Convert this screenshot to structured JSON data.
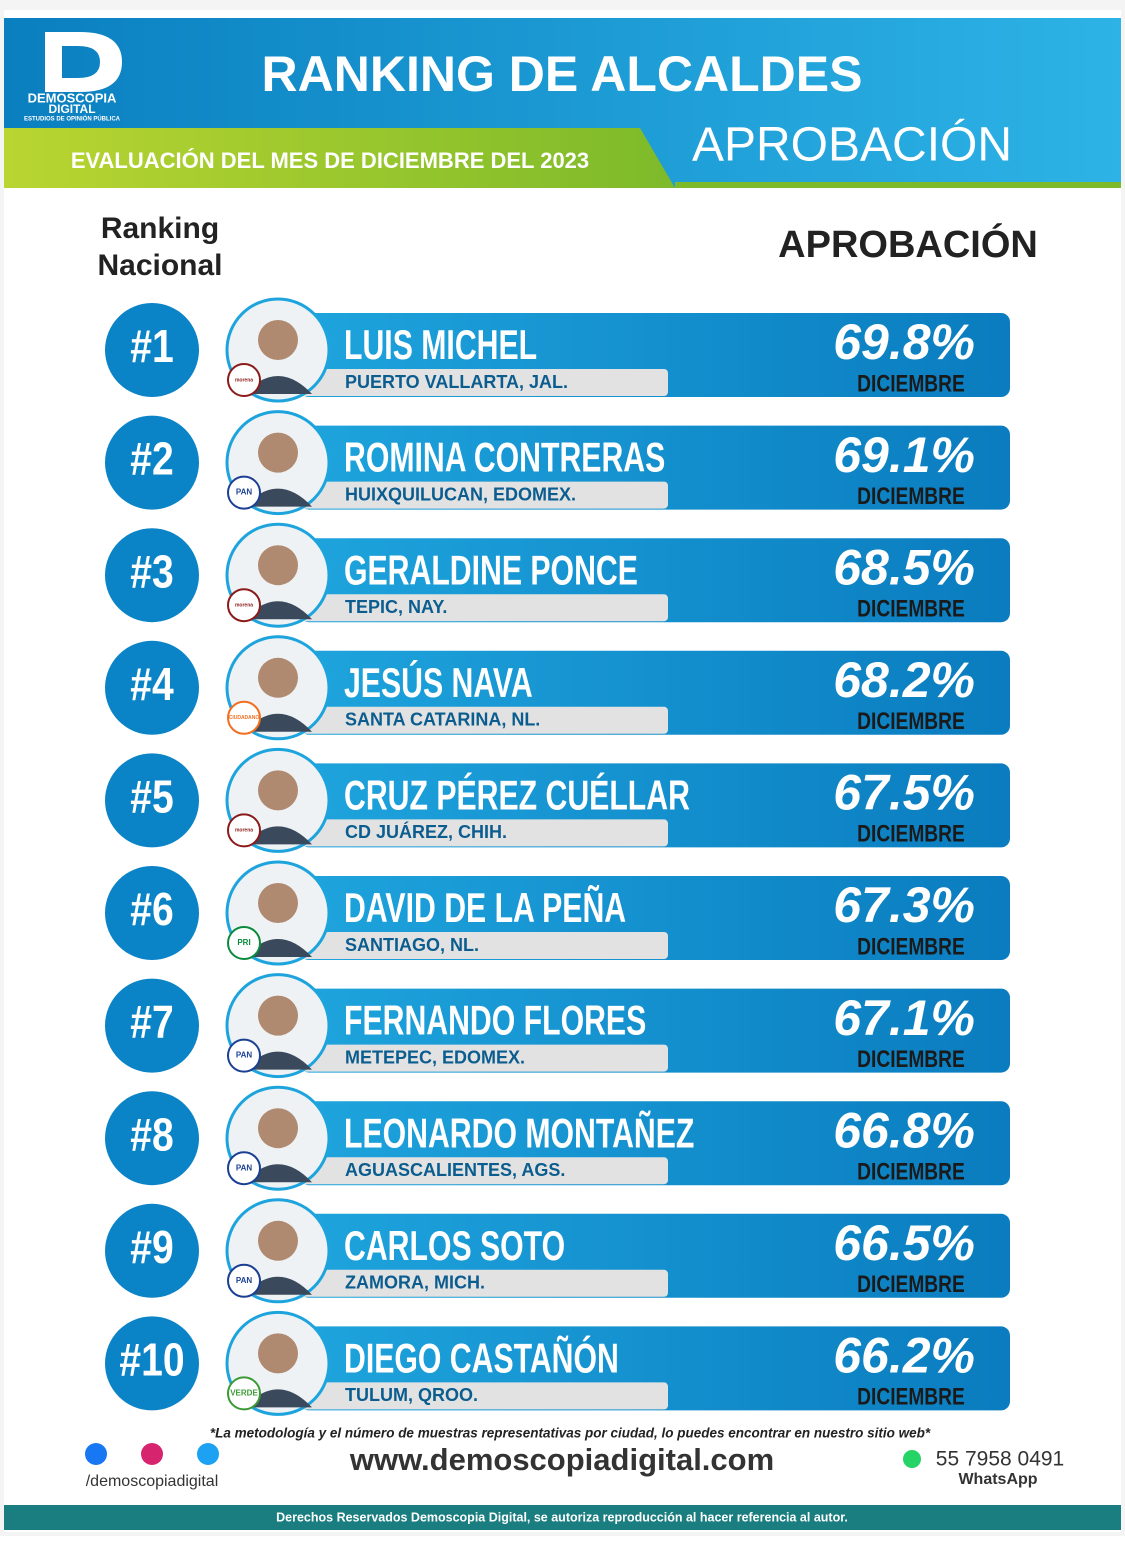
{
  "header": {
    "brand": "DEMOSCOPIA",
    "brand_2": "DIGITAL",
    "brand_sub": "ESTUDIOS DE OPINIÓN PÚBLICA",
    "title": "RANKING DE ALCALDES",
    "subtitle": "EVALUACIÓN DEL MES DE DICIEMBRE DEL 2023",
    "metric": "APROBACIÓN"
  },
  "columns": {
    "rank": [
      "Ranking",
      "Nacional"
    ],
    "value": "APROBACIÓN"
  },
  "rows": [
    {
      "rank": "#1",
      "name": "LUIS MICHEL",
      "place": "PUERTO VALLARTA, JAL.",
      "party": "morena",
      "approval": "69.8%",
      "month": "DICIEMBRE"
    },
    {
      "rank": "#2",
      "name": "ROMINA CONTRERAS",
      "place": "HUIXQUILUCAN, EDOMEX.",
      "party": "PAN",
      "approval": "69.1%",
      "month": "DICIEMBRE"
    },
    {
      "rank": "#3",
      "name": "GERALDINE PONCE",
      "place": "TEPIC, NAY.",
      "party": "morena",
      "approval": "68.5%",
      "month": "DICIEMBRE"
    },
    {
      "rank": "#4",
      "name": "JESÚS NAVA",
      "place": "SANTA CATARINA, NL.",
      "party": "CIUDADANO",
      "approval": "68.2%",
      "month": "DICIEMBRE"
    },
    {
      "rank": "#5",
      "name": "CRUZ PÉREZ CUÉLLAR",
      "place": "CD JUÁREZ, CHIH.",
      "party": "morena",
      "approval": "67.5%",
      "month": "DICIEMBRE"
    },
    {
      "rank": "#6",
      "name": "DAVID DE LA PEÑA",
      "place": "SANTIAGO, NL.",
      "party": "PRI",
      "approval": "67.3%",
      "month": "DICIEMBRE"
    },
    {
      "rank": "#7",
      "name": "FERNANDO FLORES",
      "place": "METEPEC, EDOMEX.",
      "party": "PAN",
      "approval": "67.1%",
      "month": "DICIEMBRE"
    },
    {
      "rank": "#8",
      "name": "LEONARDO MONTAÑEZ",
      "place": "AGUASCALIENTES, AGS.",
      "party": "PAN",
      "approval": "66.8%",
      "month": "DICIEMBRE"
    },
    {
      "rank": "#9",
      "name": "CARLOS SOTO",
      "place": "ZAMORA, MICH.",
      "party": "PAN",
      "approval": "66.5%",
      "month": "DICIEMBRE"
    },
    {
      "rank": "#10",
      "name": "DIEGO CASTAÑÓN",
      "place": "TULUM, QROO.",
      "party": "VERDE",
      "approval": "66.2%",
      "month": "DICIEMBRE"
    }
  ],
  "footer": {
    "note": "*La metodología y el número de muestras representativas por ciudad, lo puedes encontrar en nuestro sitio web*",
    "social": "/demoscopiadigital",
    "url": "www.demoscopiadigital.com",
    "phone": "55 7958 0491",
    "phone_label": "WhatsApp",
    "rights": "Derechos Reservados Demoscopia Digital, se autoriza reproducción al hacer referencia al autor."
  }
}
